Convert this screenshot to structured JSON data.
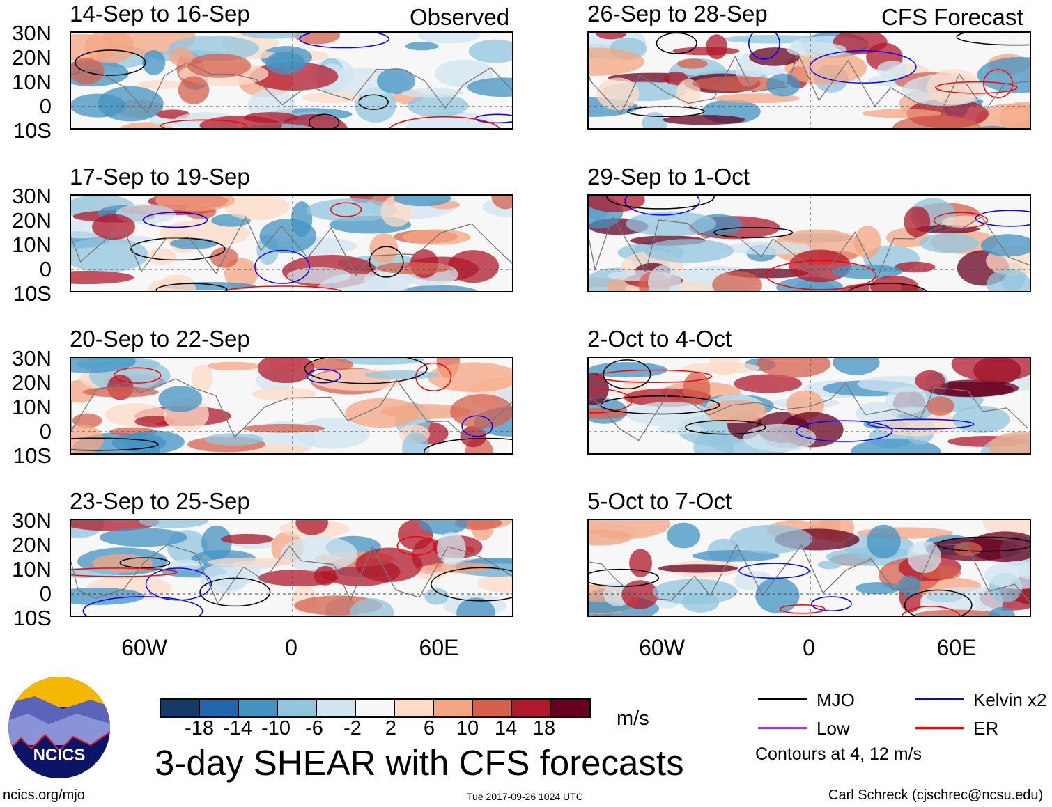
{
  "panels": {
    "observed_label": "Observed",
    "forecast_label": "CFS Forecast",
    "left": [
      "14-Sep to 16-Sep",
      "17-Sep to 19-Sep",
      "20-Sep to 22-Sep",
      "23-Sep to 25-Sep"
    ],
    "right": [
      "26-Sep to 28-Sep",
      "29-Sep to 1-Oct",
      "2-Oct to 4-Oct",
      "5-Oct to 7-Oct"
    ]
  },
  "axes": {
    "lat_ticks": [
      "30N",
      "20N",
      "10N",
      "0",
      "10S"
    ],
    "lon_ticks": [
      "60W",
      "0",
      "60E"
    ]
  },
  "colorbar": {
    "ticks": [
      "-18",
      "-14",
      "-10",
      "-6",
      "-2",
      "2",
      "6",
      "10",
      "14",
      "18"
    ],
    "colors": [
      "#163a68",
      "#2166ac",
      "#4393c3",
      "#92c5de",
      "#d1e5f0",
      "#f7f7f7",
      "#fddbc7",
      "#f4a582",
      "#d6604d",
      "#b2182b",
      "#67001f"
    ],
    "units": "m/s"
  },
  "legend": {
    "items": [
      {
        "label": "MJO",
        "color": "#000000"
      },
      {
        "label": "Kelvin x2",
        "color": "#0000ff"
      },
      {
        "label": "Low",
        "color": "#9a3fd0"
      },
      {
        "label": "ER",
        "color": "#ff0000"
      }
    ],
    "contours": "Contours at 4, 12 m/s"
  },
  "title": "3-day SHEAR with CFS forecasts",
  "logo": {
    "text": "NCICS"
  },
  "footer": {
    "url": "ncics.org/mjo",
    "timestamp": "Tue 2017-09-26 1024 UTC",
    "author": "Carl Schreck (cjschrec@ncsu.edu)"
  }
}
